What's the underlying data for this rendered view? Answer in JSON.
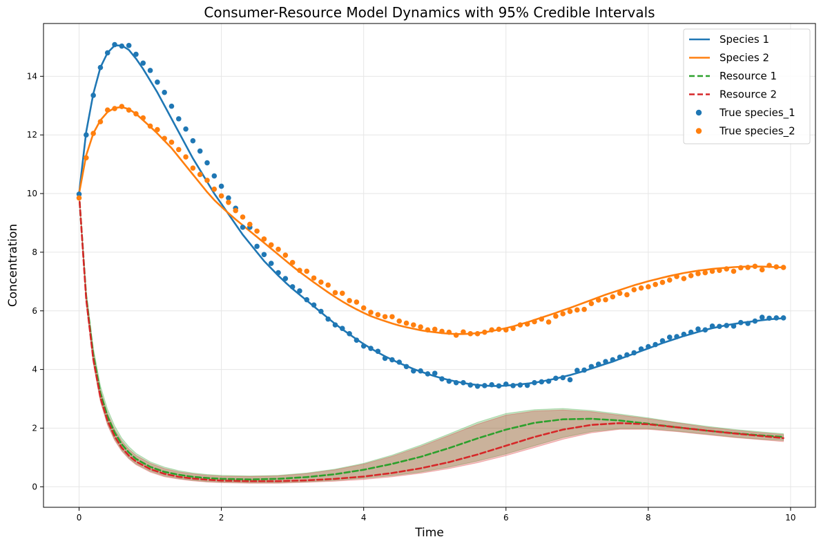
{
  "chart_data": {
    "type": "line",
    "title": "Consumer-Resource Model Dynamics with 95% Credible Intervals",
    "xlabel": "Time",
    "ylabel": "Concentration",
    "xlim": [
      -0.5,
      10.35
    ],
    "ylim": [
      -0.7,
      15.8
    ],
    "xticks": [
      0,
      2,
      4,
      6,
      8,
      10
    ],
    "yticks": [
      0,
      2,
      4,
      6,
      8,
      10,
      12,
      14
    ],
    "grid": true,
    "legend_position": "top-right",
    "series": [
      {
        "name": "Species 1",
        "kind": "line",
        "color": "#1f77b4",
        "x": [
          0,
          0.1,
          0.2,
          0.3,
          0.4,
          0.5,
          0.6,
          0.7,
          0.8,
          0.9,
          1.0,
          1.1,
          1.2,
          1.3,
          1.4,
          1.5,
          1.6,
          1.7,
          1.8,
          1.9,
          2.0,
          2.1,
          2.2,
          2.3,
          2.4,
          2.5,
          2.6,
          2.7,
          2.8,
          2.9,
          3.0,
          3.1,
          3.2,
          3.3,
          3.4,
          3.5,
          3.6,
          3.7,
          3.8,
          3.9,
          4.0,
          4.1,
          4.2,
          4.3,
          4.4,
          4.5,
          4.6,
          4.7,
          4.8,
          4.9,
          5.0,
          5.1,
          5.2,
          5.3,
          5.4,
          5.5,
          5.6,
          5.7,
          5.8,
          5.9,
          6.0,
          6.1,
          6.2,
          6.3,
          6.4,
          6.5,
          6.6,
          6.7,
          6.8,
          6.9,
          7.0,
          7.1,
          7.2,
          7.3,
          7.4,
          7.5,
          7.6,
          7.7,
          7.8,
          7.9,
          8.0,
          8.1,
          8.2,
          8.3,
          8.4,
          8.5,
          8.6,
          8.7,
          8.8,
          8.9,
          9.0,
          9.1,
          9.2,
          9.3,
          9.4,
          9.5,
          9.6,
          9.7,
          9.8,
          9.9
        ],
        "values": [
          10.0,
          12.1,
          13.4,
          14.3,
          14.8,
          15.05,
          15.05,
          14.9,
          14.6,
          14.25,
          13.85,
          13.45,
          13.0,
          12.55,
          12.1,
          11.65,
          11.2,
          10.8,
          10.4,
          10.0,
          9.65,
          9.3,
          8.95,
          8.6,
          8.3,
          8.0,
          7.7,
          7.45,
          7.2,
          6.97,
          6.75,
          6.55,
          6.35,
          6.15,
          5.95,
          5.75,
          5.55,
          5.37,
          5.2,
          5.03,
          4.87,
          4.72,
          4.58,
          4.45,
          4.33,
          4.22,
          4.12,
          4.02,
          3.93,
          3.85,
          3.77,
          3.7,
          3.64,
          3.59,
          3.54,
          3.5,
          3.47,
          3.45,
          3.44,
          3.44,
          3.45,
          3.47,
          3.49,
          3.52,
          3.55,
          3.59,
          3.64,
          3.69,
          3.75,
          3.81,
          3.88,
          3.95,
          4.03,
          4.11,
          4.19,
          4.27,
          4.36,
          4.45,
          4.54,
          4.63,
          4.72,
          4.81,
          4.9,
          4.98,
          5.06,
          5.14,
          5.21,
          5.28,
          5.35,
          5.41,
          5.46,
          5.51,
          5.55,
          5.59,
          5.62,
          5.65,
          5.68,
          5.71,
          5.73,
          5.75
        ]
      },
      {
        "name": "Species 2",
        "kind": "line",
        "color": "#ff7f0e",
        "x": [
          0,
          0.1,
          0.2,
          0.3,
          0.4,
          0.5,
          0.6,
          0.7,
          0.8,
          0.9,
          1.0,
          1.1,
          1.2,
          1.3,
          1.4,
          1.5,
          1.6,
          1.7,
          1.8,
          1.9,
          2.0,
          2.1,
          2.2,
          2.3,
          2.4,
          2.5,
          2.6,
          2.7,
          2.8,
          2.9,
          3.0,
          3.1,
          3.2,
          3.3,
          3.4,
          3.5,
          3.6,
          3.7,
          3.8,
          3.9,
          4.0,
          4.1,
          4.2,
          4.3,
          4.4,
          4.5,
          4.6,
          4.7,
          4.8,
          4.9,
          5.0,
          5.1,
          5.2,
          5.3,
          5.4,
          5.5,
          5.6,
          5.7,
          5.8,
          5.9,
          6.0,
          6.1,
          6.2,
          6.3,
          6.4,
          6.5,
          6.6,
          6.7,
          6.8,
          6.9,
          7.0,
          7.1,
          7.2,
          7.3,
          7.4,
          7.5,
          7.6,
          7.7,
          7.8,
          7.9,
          8.0,
          8.1,
          8.2,
          8.3,
          8.4,
          8.5,
          8.6,
          8.7,
          8.8,
          8.9,
          9.0,
          9.1,
          9.2,
          9.3,
          9.4,
          9.5,
          9.6,
          9.7,
          9.8,
          9.9
        ],
        "values": [
          10.0,
          11.3,
          12.05,
          12.5,
          12.78,
          12.92,
          12.95,
          12.88,
          12.72,
          12.5,
          12.28,
          12.05,
          11.8,
          11.55,
          11.25,
          10.95,
          10.65,
          10.35,
          10.05,
          9.78,
          9.55,
          9.33,
          9.12,
          8.92,
          8.72,
          8.52,
          8.32,
          8.12,
          7.92,
          7.72,
          7.52,
          7.33,
          7.15,
          6.97,
          6.8,
          6.63,
          6.47,
          6.32,
          6.18,
          6.05,
          5.93,
          5.82,
          5.73,
          5.65,
          5.57,
          5.5,
          5.44,
          5.39,
          5.34,
          5.3,
          5.27,
          5.24,
          5.22,
          5.21,
          5.21,
          5.22,
          5.24,
          5.27,
          5.31,
          5.36,
          5.41,
          5.47,
          5.54,
          5.61,
          5.69,
          5.77,
          5.85,
          5.93,
          6.02,
          6.1,
          6.19,
          6.28,
          6.37,
          6.46,
          6.55,
          6.63,
          6.71,
          6.79,
          6.87,
          6.94,
          7.01,
          7.07,
          7.13,
          7.19,
          7.24,
          7.29,
          7.33,
          7.37,
          7.4,
          7.43,
          7.45,
          7.47,
          7.49,
          7.5,
          7.51,
          7.51,
          7.51,
          7.5,
          7.49,
          7.48
        ]
      },
      {
        "name": "Resource 1",
        "kind": "dashed",
        "color": "#2ca02c",
        "x": [
          0,
          0.1,
          0.2,
          0.3,
          0.4,
          0.5,
          0.6,
          0.7,
          0.8,
          1.0,
          1.2,
          1.4,
          1.6,
          1.8,
          2.0,
          2.4,
          2.8,
          3.2,
          3.6,
          4.0,
          4.4,
          4.8,
          5.2,
          5.6,
          6.0,
          6.4,
          6.8,
          7.2,
          7.6,
          8.0,
          8.4,
          8.8,
          9.2,
          9.6,
          9.9
        ],
        "values": [
          10.0,
          6.5,
          4.5,
          3.2,
          2.4,
          1.85,
          1.45,
          1.17,
          0.95,
          0.68,
          0.51,
          0.41,
          0.34,
          0.3,
          0.27,
          0.25,
          0.27,
          0.33,
          0.43,
          0.58,
          0.78,
          1.02,
          1.32,
          1.65,
          1.95,
          2.18,
          2.3,
          2.32,
          2.26,
          2.15,
          2.03,
          1.92,
          1.83,
          1.75,
          1.7
        ]
      },
      {
        "name": "Resource 2",
        "kind": "dashed",
        "color": "#d62728",
        "x": [
          0,
          0.1,
          0.2,
          0.3,
          0.4,
          0.5,
          0.6,
          0.7,
          0.8,
          1.0,
          1.2,
          1.4,
          1.6,
          1.8,
          2.0,
          2.4,
          2.8,
          3.2,
          3.6,
          4.0,
          4.4,
          4.8,
          5.2,
          5.6,
          6.0,
          6.4,
          6.8,
          7.2,
          7.6,
          8.0,
          8.4,
          8.8,
          9.2,
          9.6,
          9.9
        ],
        "values": [
          10.0,
          6.4,
          4.35,
          3.05,
          2.25,
          1.72,
          1.33,
          1.06,
          0.86,
          0.6,
          0.44,
          0.34,
          0.28,
          0.24,
          0.21,
          0.19,
          0.19,
          0.22,
          0.27,
          0.35,
          0.47,
          0.63,
          0.84,
          1.1,
          1.4,
          1.7,
          1.95,
          2.11,
          2.17,
          2.13,
          2.03,
          1.92,
          1.82,
          1.73,
          1.66
        ]
      },
      {
        "name": "True species_1",
        "kind": "scatter",
        "color": "#1f77b4",
        "x": [
          0,
          0.1,
          0.2,
          0.3,
          0.4,
          0.5,
          0.6,
          0.7,
          0.8,
          0.9,
          1.0,
          1.1,
          1.2,
          1.3,
          1.4,
          1.5,
          1.6,
          1.7,
          1.8,
          1.9,
          2.0,
          2.1,
          2.2,
          2.3,
          2.4,
          2.5,
          2.6,
          2.7,
          2.8,
          2.9,
          3.0,
          3.1,
          3.2,
          3.3,
          3.4,
          3.5,
          3.6,
          3.7,
          3.8,
          3.9,
          4.0,
          4.1,
          4.2,
          4.3,
          4.4,
          4.5,
          4.6,
          4.7,
          4.8,
          4.9,
          5.0,
          5.1,
          5.2,
          5.3,
          5.4,
          5.5,
          5.6,
          5.7,
          5.8,
          5.9,
          6.0,
          6.1,
          6.2,
          6.3,
          6.4,
          6.5,
          6.6,
          6.7,
          6.8,
          6.9,
          7.0,
          7.1,
          7.2,
          7.3,
          7.4,
          7.5,
          7.6,
          7.7,
          7.8,
          7.9,
          8.0,
          8.1,
          8.2,
          8.3,
          8.4,
          8.5,
          8.6,
          8.7,
          8.8,
          8.9,
          9.0,
          9.1,
          9.2,
          9.3,
          9.4,
          9.5,
          9.6,
          9.7,
          9.8,
          9.9
        ],
        "values": [
          9.98,
          12.0,
          13.35,
          14.3,
          14.8,
          15.08,
          15.03,
          15.05,
          14.75,
          14.45,
          14.2,
          13.8,
          13.45,
          12.98,
          12.55,
          12.2,
          11.8,
          11.45,
          11.05,
          10.6,
          10.25,
          9.85,
          9.5,
          8.85,
          8.85,
          8.2,
          7.92,
          7.62,
          7.3,
          7.1,
          6.82,
          6.68,
          6.38,
          6.2,
          5.98,
          5.72,
          5.52,
          5.4,
          5.22,
          5.0,
          4.8,
          4.72,
          4.62,
          4.38,
          4.33,
          4.25,
          4.1,
          3.95,
          3.95,
          3.85,
          3.87,
          3.68,
          3.6,
          3.55,
          3.55,
          3.47,
          3.43,
          3.45,
          3.48,
          3.44,
          3.5,
          3.45,
          3.47,
          3.46,
          3.55,
          3.58,
          3.6,
          3.7,
          3.72,
          3.65,
          3.97,
          3.98,
          4.1,
          4.18,
          4.27,
          4.33,
          4.42,
          4.5,
          4.57,
          4.7,
          4.78,
          4.85,
          4.98,
          5.1,
          5.12,
          5.2,
          5.27,
          5.38,
          5.35,
          5.48,
          5.47,
          5.5,
          5.48,
          5.6,
          5.57,
          5.65,
          5.78,
          5.75,
          5.76,
          5.76
        ]
      },
      {
        "name": "True species_2",
        "kind": "scatter",
        "color": "#ff7f0e",
        "x": [
          0,
          0.1,
          0.2,
          0.3,
          0.4,
          0.5,
          0.6,
          0.7,
          0.8,
          0.9,
          1.0,
          1.1,
          1.2,
          1.3,
          1.4,
          1.5,
          1.6,
          1.7,
          1.8,
          1.9,
          2.0,
          2.1,
          2.2,
          2.3,
          2.4,
          2.5,
          2.6,
          2.7,
          2.8,
          2.9,
          3.0,
          3.1,
          3.2,
          3.3,
          3.4,
          3.5,
          3.6,
          3.7,
          3.8,
          3.9,
          4.0,
          4.1,
          4.2,
          4.3,
          4.4,
          4.5,
          4.6,
          4.7,
          4.8,
          4.9,
          5.0,
          5.1,
          5.2,
          5.3,
          5.4,
          5.5,
          5.6,
          5.7,
          5.8,
          5.9,
          6.0,
          6.1,
          6.2,
          6.3,
          6.4,
          6.5,
          6.6,
          6.7,
          6.8,
          6.9,
          7.0,
          7.1,
          7.2,
          7.3,
          7.4,
          7.5,
          7.6,
          7.7,
          7.8,
          7.9,
          8.0,
          8.1,
          8.2,
          8.3,
          8.4,
          8.5,
          8.6,
          8.7,
          8.8,
          8.9,
          9.0,
          9.1,
          9.2,
          9.3,
          9.4,
          9.5,
          9.6,
          9.7,
          9.8,
          9.9
        ],
        "values": [
          9.85,
          11.22,
          12.05,
          12.45,
          12.85,
          12.9,
          12.97,
          12.85,
          12.72,
          12.58,
          12.3,
          12.18,
          11.88,
          11.75,
          11.5,
          11.25,
          10.87,
          10.65,
          10.45,
          10.15,
          9.92,
          9.7,
          9.42,
          9.2,
          8.95,
          8.72,
          8.45,
          8.25,
          8.1,
          7.9,
          7.65,
          7.38,
          7.35,
          7.12,
          6.98,
          6.88,
          6.62,
          6.6,
          6.35,
          6.3,
          6.1,
          5.95,
          5.87,
          5.8,
          5.8,
          5.65,
          5.58,
          5.52,
          5.45,
          5.35,
          5.37,
          5.3,
          5.27,
          5.17,
          5.28,
          5.22,
          5.22,
          5.27,
          5.35,
          5.37,
          5.35,
          5.4,
          5.52,
          5.55,
          5.63,
          5.72,
          5.62,
          5.82,
          5.9,
          5.98,
          6.03,
          6.05,
          6.25,
          6.37,
          6.38,
          6.48,
          6.6,
          6.55,
          6.72,
          6.78,
          6.82,
          6.9,
          6.97,
          7.05,
          7.17,
          7.1,
          7.2,
          7.27,
          7.3,
          7.35,
          7.38,
          7.43,
          7.35,
          7.47,
          7.48,
          7.52,
          7.4,
          7.55,
          7.5,
          7.48
        ]
      }
    ],
    "credible_intervals": [
      {
        "label": "95% CI Resource 1",
        "color": "#2ca02c",
        "x": [
          0,
          0.1,
          0.2,
          0.3,
          0.4,
          0.5,
          0.6,
          0.7,
          0.8,
          1.0,
          1.2,
          1.4,
          1.6,
          1.8,
          2.0,
          2.4,
          2.8,
          3.2,
          3.6,
          4.0,
          4.4,
          4.8,
          5.2,
          5.6,
          6.0,
          6.4,
          6.8,
          7.2,
          7.6,
          8.0,
          8.4,
          8.8,
          9.2,
          9.6,
          9.9
        ],
        "lower": [
          10.0,
          6.3,
          4.25,
          2.95,
          2.15,
          1.62,
          1.25,
          0.98,
          0.78,
          0.53,
          0.37,
          0.28,
          0.22,
          0.18,
          0.16,
          0.14,
          0.14,
          0.17,
          0.22,
          0.29,
          0.38,
          0.5,
          0.67,
          0.88,
          1.12,
          1.4,
          1.68,
          1.88,
          1.98,
          1.98,
          1.9,
          1.8,
          1.7,
          1.62,
          1.58
        ],
        "upper": [
          10.0,
          6.7,
          4.75,
          3.45,
          2.65,
          2.08,
          1.66,
          1.37,
          1.14,
          0.85,
          0.67,
          0.55,
          0.47,
          0.42,
          0.39,
          0.37,
          0.39,
          0.47,
          0.6,
          0.8,
          1.08,
          1.42,
          1.8,
          2.2,
          2.5,
          2.63,
          2.67,
          2.6,
          2.48,
          2.35,
          2.2,
          2.07,
          1.96,
          1.87,
          1.81
        ]
      },
      {
        "label": "95% CI Resource 2",
        "color": "#d62728",
        "x": [
          0,
          0.1,
          0.2,
          0.3,
          0.4,
          0.5,
          0.6,
          0.7,
          0.8,
          1.0,
          1.2,
          1.4,
          1.6,
          1.8,
          2.0,
          2.4,
          2.8,
          3.2,
          3.6,
          4.0,
          4.4,
          4.8,
          5.2,
          5.6,
          6.0,
          6.4,
          6.8,
          7.2,
          7.6,
          8.0,
          8.4,
          8.8,
          9.2,
          9.6,
          9.9
        ],
        "lower": [
          10.0,
          6.25,
          4.2,
          2.9,
          2.1,
          1.58,
          1.21,
          0.95,
          0.75,
          0.5,
          0.34,
          0.26,
          0.2,
          0.16,
          0.14,
          0.12,
          0.12,
          0.15,
          0.19,
          0.25,
          0.34,
          0.46,
          0.62,
          0.82,
          1.06,
          1.34,
          1.62,
          1.84,
          1.96,
          1.96,
          1.88,
          1.78,
          1.68,
          1.6,
          1.54
        ],
        "upper": [
          10.0,
          6.6,
          4.6,
          3.3,
          2.5,
          1.95,
          1.56,
          1.28,
          1.07,
          0.8,
          0.62,
          0.51,
          0.44,
          0.39,
          0.36,
          0.35,
          0.37,
          0.45,
          0.58,
          0.77,
          1.04,
          1.37,
          1.75,
          2.13,
          2.44,
          2.58,
          2.62,
          2.56,
          2.44,
          2.32,
          2.18,
          2.04,
          1.93,
          1.84,
          1.78
        ]
      }
    ]
  }
}
